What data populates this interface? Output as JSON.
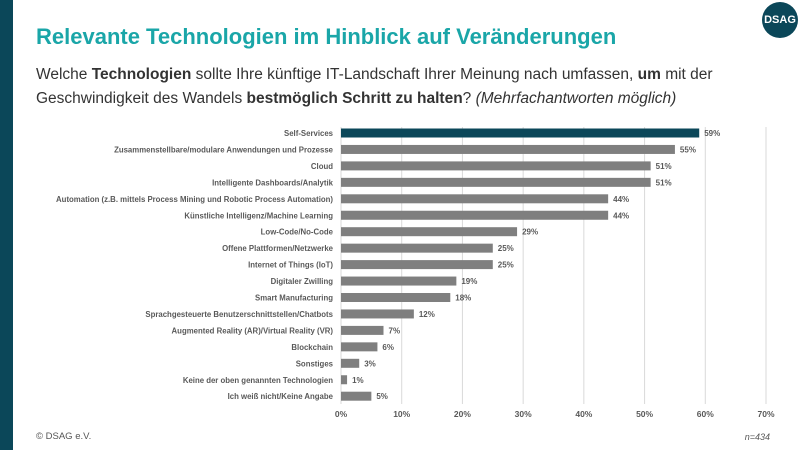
{
  "title": "Relevante Technologien im Hinblick auf Veränderungen",
  "logo": "DSAG",
  "question": {
    "p1": "Welche ",
    "b1": "Technologien",
    "p2": " sollte Ihre künftige IT-Landschaft Ihrer Meinung nach umfassen, ",
    "b2": "um",
    "p3": " mit der Geschwindigkeit des Wandels ",
    "b3": "bestmöglich Schritt zu halten",
    "p4": "? ",
    "i1": "(Mehrfachantworten möglich)"
  },
  "footer": "© DSAG e.V.",
  "sample": "n=434",
  "chart_data": {
    "type": "bar",
    "orientation": "horizontal",
    "categories": [
      "Self-Services",
      "Zusammenstellbare/modulare Anwendungen und Prozesse",
      "Cloud",
      "Intelligente Dashboards/Analytik",
      "Automation (z.B. mittels Process Mining und Robotic Process Automation)",
      "Künstliche Intelligenz/Machine Learning",
      "Low-Code/No-Code",
      "Offene Plattformen/Netzwerke",
      "Internet of Things (IoT)",
      "Digitaler Zwilling",
      "Smart Manufacturing",
      "Sprachgesteuerte Benutzerschnittstellen/Chatbots",
      "Augmented Reality (AR)/Virtual Reality (VR)",
      "Blockchain",
      "Sonstiges",
      "Keine der oben genannten Technologien",
      "Ich weiß nicht/Keine Angabe"
    ],
    "values": [
      59,
      55,
      51,
      51,
      44,
      44,
      29,
      25,
      25,
      19,
      18,
      12,
      7,
      6,
      3,
      1,
      5
    ],
    "data_labels": [
      "59%",
      "55%",
      "51%",
      "51%",
      "44%",
      "44%",
      "29%",
      "25%",
      "25%",
      "19%",
      "18%",
      "12%",
      "7%",
      "6%",
      "3%",
      "1%",
      "5%"
    ],
    "xlim": [
      0,
      70
    ],
    "xticks": [
      "0%",
      "10%",
      "20%",
      "30%",
      "40%",
      "50%",
      "60%",
      "70%"
    ],
    "grid": true,
    "colors": {
      "highlight": "#0b4759",
      "default": "#7f7f7f"
    }
  }
}
